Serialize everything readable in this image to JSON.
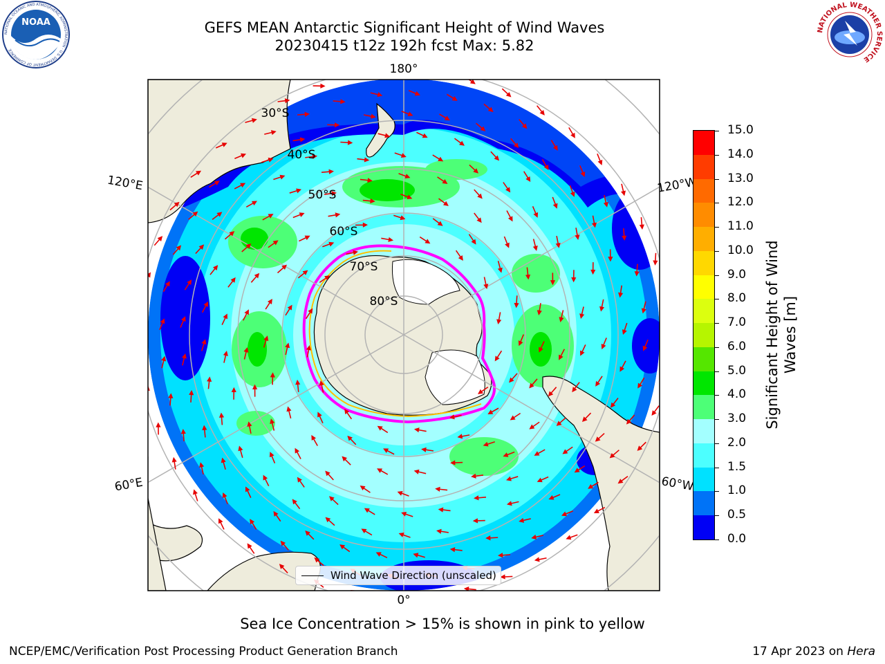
{
  "title": {
    "line1": "GEFS MEAN Antarctic Significant Height of Wind Waves",
    "line2": "20230415 t12z 192h fcst   Max: 5.82"
  },
  "logos": {
    "noaa": {
      "text": "NOAA",
      "ring_text": "NATIONAL OCEANIC AND ATMOSPHERIC ADMINISTRATION · U.S. DEPARTMENT OF COMMERCE"
    },
    "nws": {
      "ring_text": "NATIONAL WEATHER SERVICE"
    }
  },
  "map": {
    "projection": "south polar stereographic",
    "longitude_labels": [
      "180°",
      "120°E",
      "120°W",
      "60°E",
      "60°W",
      "0°"
    ],
    "latitude_labels": [
      "30°S",
      "40°S",
      "50°S",
      "60°S",
      "70°S",
      "80°S"
    ],
    "max_value": 5.82,
    "colors": {
      "ocean_low": "#0000f5",
      "land": "#eeecdc",
      "ice_edge": "#ff00ff",
      "arrow": "#e60000",
      "graticule": "#b3b3b3"
    }
  },
  "legend": {
    "label": "Wind Wave Direction (unscaled)"
  },
  "colorbar": {
    "label": "Significant Height of Wind Waves [m]",
    "ticks": [
      "0.0",
      "0.5",
      "1.0",
      "1.5",
      "2.0",
      "3.0",
      "4.0",
      "5.0",
      "6.0",
      "7.0",
      "8.0",
      "9.0",
      "10.0",
      "11.0",
      "12.0",
      "13.0",
      "14.0",
      "15.0"
    ],
    "colors": [
      "#0000f5",
      "#0073f7",
      "#00e1ff",
      "#4cffff",
      "#a3ffff",
      "#4dff77",
      "#00e600",
      "#55e600",
      "#b6f500",
      "#dcff0f",
      "#ffff00",
      "#ffd800",
      "#ffae00",
      "#ff8c00",
      "#ff6a00",
      "#ff3c00",
      "#ff0000"
    ]
  },
  "notes": {
    "ice": "Sea Ice Concentration > 15% is shown in pink to yellow",
    "producer": "NCEP/EMC/Verification Post Processing Product Generation Branch",
    "date": "17 Apr 2023 on",
    "machine": "Hera"
  }
}
